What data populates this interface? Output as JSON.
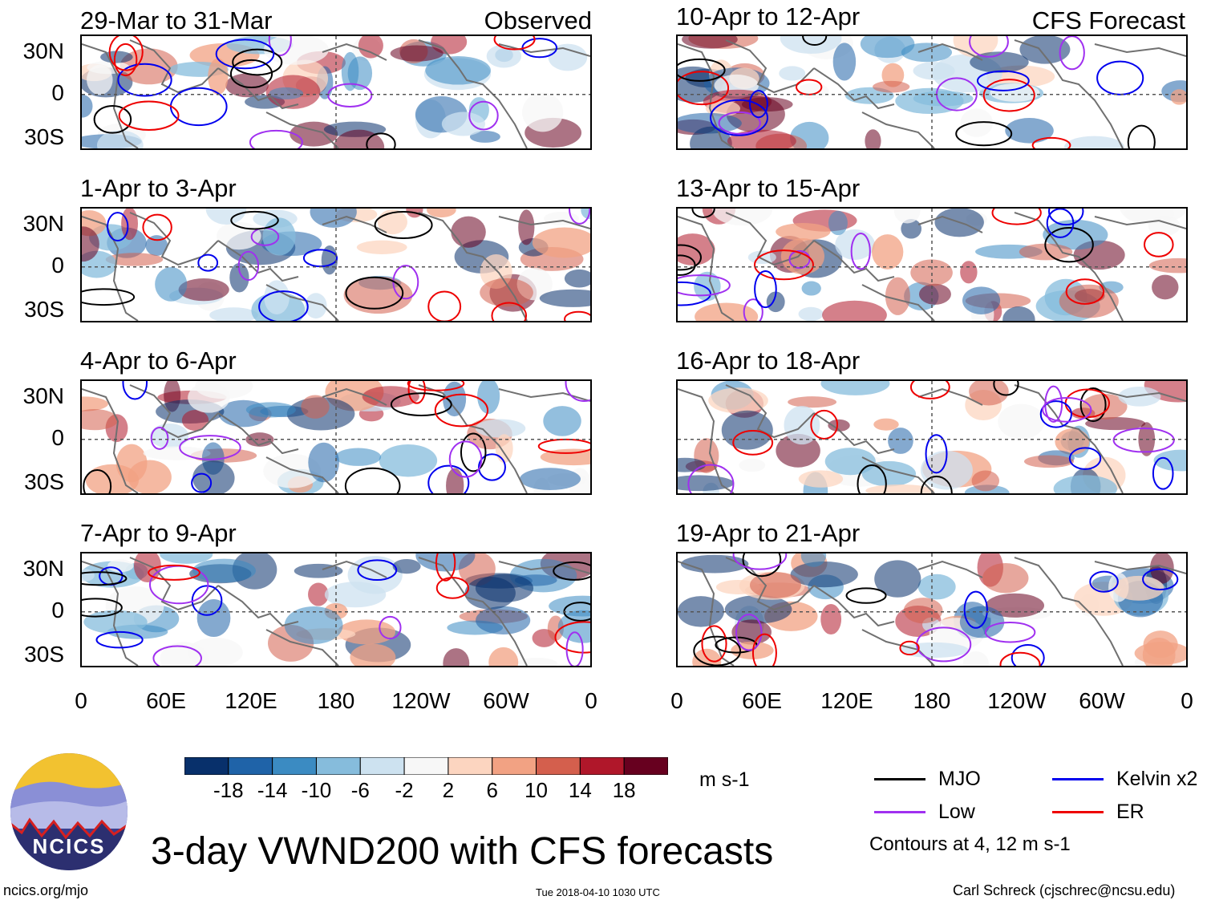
{
  "figure": {
    "title": "3-day VWND200 with CFS forecasts",
    "observed_tag": "Observed",
    "forecast_tag": "CFS Forecast",
    "units": "m s-1",
    "contour_note": "Contours at 4, 12 m s-1",
    "website": "ncics.org/mjo",
    "timestamp": "Tue 2018-04-10 1030 UTC",
    "author": "Carl Schreck (cjschrec@ncsu.edu)",
    "logo_text": "NCICS"
  },
  "axes": {
    "lat_ticks": [
      "30N",
      "0",
      "30S"
    ],
    "lon_ticks": [
      "0",
      "60E",
      "120E",
      "180",
      "120W",
      "60W",
      "0"
    ]
  },
  "panels": [
    {
      "period": "29-Mar to 31-Mar"
    },
    {
      "period": "1-Apr to 3-Apr"
    },
    {
      "period": "4-Apr to 6-Apr"
    },
    {
      "period": "7-Apr to 9-Apr"
    },
    {
      "period": "10-Apr to 12-Apr"
    },
    {
      "period": "13-Apr to 15-Apr"
    },
    {
      "period": "16-Apr to 18-Apr"
    },
    {
      "period": "19-Apr to 21-Apr"
    }
  ],
  "colorbar": {
    "labels": [
      "-18",
      "-14",
      "-10",
      "-6",
      "-2",
      "2",
      "6",
      "10",
      "14",
      "18"
    ],
    "colors": [
      "#08306b",
      "#1f63a8",
      "#3b8bc2",
      "#86bcdc",
      "#cde2f0",
      "#f7f7f7",
      "#fcd5c0",
      "#f2a283",
      "#d45f4d",
      "#b0172a",
      "#67001f"
    ]
  },
  "legend": [
    {
      "label": "MJO",
      "color": "#000000"
    },
    {
      "label": "Kelvin x2",
      "color": "#0000ee"
    },
    {
      "label": "Low",
      "color": "#a030f0"
    },
    {
      "label": "ER",
      "color": "#ee0000"
    }
  ]
}
